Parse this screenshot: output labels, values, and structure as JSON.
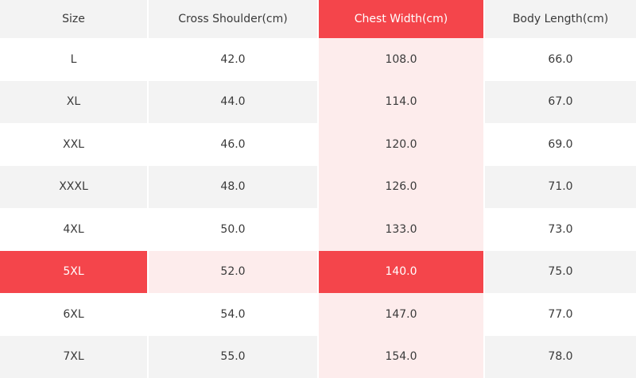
{
  "table": {
    "header": [
      "Size",
      "Cross Shoulder(cm)",
      "Chest Width(cm)",
      "Body Length(cm)"
    ],
    "rows": [
      [
        "L",
        "42.0",
        "108.0",
        "66.0"
      ],
      [
        "XL",
        "44.0",
        "114.0",
        "67.0"
      ],
      [
        "XXL",
        "46.0",
        "120.0",
        "69.0"
      ],
      [
        "XXXL",
        "48.0",
        "126.0",
        "71.0"
      ],
      [
        "4XL",
        "50.0",
        "133.0",
        "73.0"
      ],
      [
        "5XL",
        "52.0",
        "140.0",
        "75.0"
      ],
      [
        "6XL",
        "54.0",
        "147.0",
        "77.0"
      ],
      [
        "7XL",
        "55.0",
        "154.0",
        "78.0"
      ]
    ],
    "highlight": {
      "column": 2,
      "row": 5
    }
  }
}
